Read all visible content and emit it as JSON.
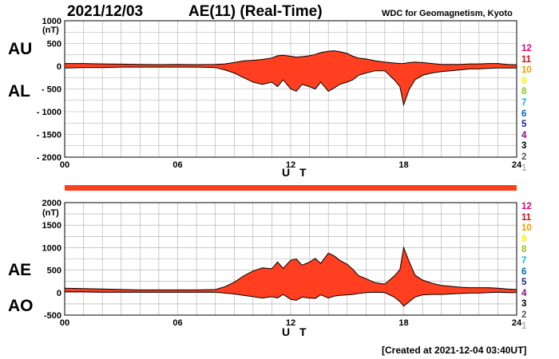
{
  "header": {
    "date": "2021/12/03",
    "title": "AE(11) (Real-Time)",
    "source": "WDC for Geomagnetism, Kyoto",
    "created": "[Created at 2021-12-04 03:40UT]"
  },
  "legend": {
    "levels": [
      "12",
      "11",
      "10",
      "9",
      "8",
      "7",
      "6",
      "5",
      "4",
      "3",
      "2",
      "1"
    ],
    "colors": [
      "#e6007e",
      "#e60012",
      "#f39800",
      "#fff100",
      "#8fc31f",
      "#00b7ee",
      "#0068b7",
      "#1d2088",
      "#920783",
      "#000000",
      "#595757",
      "#b5b5b6"
    ]
  },
  "colors": {
    "fill": "#ff3f1f",
    "trace": "#000000",
    "grid": "#aaaaaa",
    "highlight": "#f6d060",
    "status_bar": "#ff3f1f"
  },
  "chart_data": [
    {
      "type": "area",
      "panel": "top",
      "labels": {
        "upper": "AU",
        "lower": "AL"
      },
      "units": "(nT)",
      "xlabel": "U T",
      "x_ticks": [
        "00",
        "06",
        "12",
        "18",
        "24"
      ],
      "xlim": [
        0,
        24
      ],
      "ylim": [
        -2000,
        1000
      ],
      "y_ticks": [
        1000,
        500,
        0,
        -500,
        -1000,
        -1500,
        -2000
      ],
      "y_tick_labels": [
        "1000",
        "500",
        "0",
        "- 500",
        "- 1000",
        "- 1500",
        "- 2000"
      ],
      "grid": true,
      "series": [
        {
          "key": "upper",
          "x": [
            0,
            1,
            2,
            3,
            4,
            5,
            6,
            7,
            8,
            8.5,
            9,
            9.5,
            10,
            10.5,
            11,
            11.3,
            11.6,
            12,
            12.3,
            12.6,
            13,
            13.3,
            13.6,
            14,
            14.3,
            14.6,
            15,
            15.3,
            15.6,
            16,
            16.5,
            17,
            17.5,
            17.8,
            18,
            18.3,
            18.6,
            19,
            19.5,
            20,
            20.5,
            21,
            21.5,
            22,
            22.5,
            23,
            23.5,
            24
          ],
          "y": [
            60,
            60,
            50,
            45,
            40,
            35,
            40,
            35,
            40,
            50,
            80,
            120,
            130,
            150,
            180,
            230,
            240,
            220,
            200,
            210,
            230,
            260,
            300,
            330,
            340,
            320,
            280,
            220,
            180,
            160,
            120,
            90,
            70,
            60,
            60,
            80,
            90,
            80,
            60,
            40,
            40,
            40,
            50,
            50,
            60,
            60,
            40,
            30
          ]
        },
        {
          "key": "lower",
          "x": [
            0,
            1,
            2,
            3,
            4,
            5,
            6,
            7,
            8,
            8.5,
            9,
            9.5,
            10,
            10.5,
            11,
            11.3,
            11.6,
            12,
            12.3,
            12.6,
            13,
            13.3,
            13.6,
            14,
            14.3,
            14.6,
            15,
            15.3,
            15.6,
            16,
            16.5,
            17,
            17.5,
            17.8,
            18,
            18.3,
            18.6,
            19,
            19.5,
            20,
            20.5,
            21,
            21.5,
            22,
            22.5,
            23,
            23.5,
            24
          ],
          "y": [
            -40,
            -30,
            -30,
            -20,
            -20,
            -20,
            -20,
            -20,
            -30,
            -80,
            -150,
            -250,
            -350,
            -400,
            -350,
            -450,
            -300,
            -500,
            -550,
            -400,
            -450,
            -500,
            -350,
            -550,
            -480,
            -400,
            -350,
            -300,
            -200,
            -150,
            -100,
            -100,
            -300,
            -450,
            -850,
            -500,
            -300,
            -200,
            -150,
            -120,
            -100,
            -80,
            -60,
            -60,
            -50,
            -40,
            -40,
            -40
          ]
        }
      ]
    },
    {
      "type": "area",
      "panel": "bottom",
      "labels": {
        "upper": "AE",
        "lower": "AO"
      },
      "units": "(nT)",
      "xlabel": "U T",
      "x_ticks": [
        "00",
        "06",
        "12",
        "18",
        "24"
      ],
      "xlim": [
        0,
        24
      ],
      "ylim": [
        -500,
        2000
      ],
      "y_ticks": [
        2000,
        1500,
        1000,
        500,
        0,
        -500
      ],
      "y_tick_labels": [
        "2000",
        "1500",
        "1000",
        "500",
        "0",
        "-500"
      ],
      "grid": true,
      "series": [
        {
          "key": "upper",
          "x": [
            0,
            1,
            2,
            3,
            4,
            5,
            6,
            7,
            8,
            8.5,
            9,
            9.5,
            10,
            10.5,
            11,
            11.3,
            11.6,
            12,
            12.3,
            12.6,
            13,
            13.3,
            13.6,
            14,
            14.3,
            14.6,
            15,
            15.3,
            15.6,
            16,
            16.5,
            17,
            17.5,
            17.8,
            18,
            18.3,
            18.6,
            19,
            19.5,
            20,
            20.5,
            21,
            21.5,
            22,
            22.5,
            23,
            23.5,
            24
          ],
          "y": [
            100,
            90,
            80,
            70,
            60,
            60,
            60,
            60,
            70,
            130,
            230,
            370,
            480,
            550,
            530,
            680,
            540,
            720,
            750,
            610,
            680,
            760,
            650,
            880,
            820,
            720,
            630,
            520,
            380,
            310,
            220,
            190,
            370,
            510,
            1000,
            680,
            390,
            280,
            210,
            160,
            140,
            120,
            110,
            110,
            110,
            100,
            80,
            70
          ]
        },
        {
          "key": "lower",
          "x": [
            0,
            1,
            2,
            3,
            4,
            5,
            6,
            7,
            8,
            8.5,
            9,
            9.5,
            10,
            10.5,
            11,
            11.3,
            11.6,
            12,
            12.3,
            12.6,
            13,
            13.3,
            13.6,
            14,
            14.3,
            14.6,
            15,
            15.3,
            15.6,
            16,
            16.5,
            17,
            17.5,
            17.8,
            18,
            18.3,
            18.6,
            19,
            19.5,
            20,
            20.5,
            21,
            21.5,
            22,
            22.5,
            23,
            23.5,
            24
          ],
          "y": [
            20,
            20,
            10,
            10,
            10,
            10,
            10,
            10,
            10,
            -10,
            -30,
            -60,
            -90,
            -120,
            -90,
            -120,
            -40,
            -150,
            -170,
            -100,
            -120,
            -130,
            -50,
            -120,
            -80,
            -60,
            -50,
            -40,
            -20,
            0,
            10,
            0,
            -100,
            -200,
            -300,
            -200,
            -100,
            -50,
            -40,
            -40,
            -30,
            -20,
            -10,
            -10,
            0,
            10,
            0,
            0
          ]
        }
      ]
    }
  ]
}
